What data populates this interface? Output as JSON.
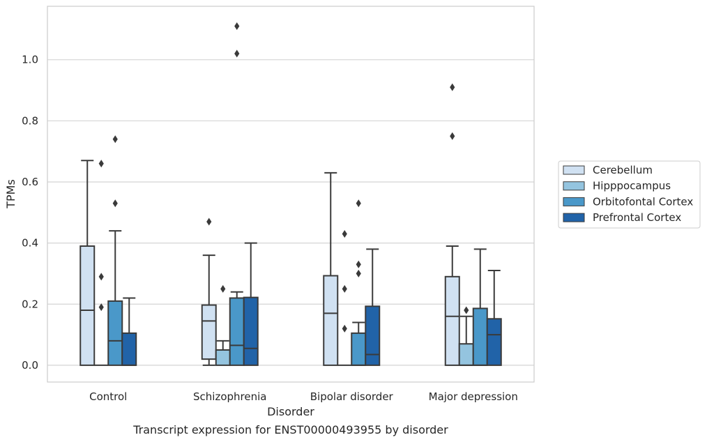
{
  "chart_data": {
    "type": "box",
    "xlabel": "Disorder",
    "ylabel": "TPMs",
    "caption": "Transcript expression for ENST00000493955 by disorder",
    "ylim": [
      -0.055,
      1.175
    ],
    "yticks": [
      "0.0",
      "0.2",
      "0.4",
      "0.6",
      "0.8",
      "1.0"
    ],
    "grid": true,
    "legend_position": "right",
    "categories": [
      "Control",
      "Schizophrenia",
      "Bipolar disorder",
      "Major depression"
    ],
    "series": [
      {
        "name": "Cerebellum",
        "color": "#d0e1f2",
        "boxes": [
          {
            "whislo": 0.0,
            "q1": 0.0,
            "med": 0.18,
            "q3": 0.39,
            "whishi": 0.67,
            "fliers": []
          },
          {
            "whislo": 0.0,
            "q1": 0.02,
            "med": 0.145,
            "q3": 0.197,
            "whishi": 0.36,
            "fliers": [
              0.47
            ]
          },
          {
            "whislo": 0.0,
            "q1": 0.0,
            "med": 0.17,
            "q3": 0.293,
            "whishi": 0.63,
            "fliers": []
          },
          {
            "whislo": 0.0,
            "q1": 0.0,
            "med": 0.16,
            "q3": 0.29,
            "whishi": 0.39,
            "fliers": [
              0.75,
              0.91
            ]
          }
        ]
      },
      {
        "name": "Hipppocampus",
        "color": "#94c4df",
        "boxes": [
          {
            "whislo": 0.0,
            "q1": 0.0,
            "med": 0.0,
            "q3": 0.0,
            "whishi": 0.0,
            "fliers": [
              0.19,
              0.29,
              0.66
            ]
          },
          {
            "whislo": 0.0,
            "q1": 0.0,
            "med": 0.05,
            "q3": 0.05,
            "whishi": 0.08,
            "fliers": [
              0.25
            ]
          },
          {
            "whislo": 0.0,
            "q1": 0.0,
            "med": 0.0,
            "q3": 0.0,
            "whishi": 0.0,
            "fliers": [
              0.12,
              0.25,
              0.43
            ]
          },
          {
            "whislo": 0.0,
            "q1": 0.0,
            "med": 0.0,
            "q3": 0.07,
            "whishi": 0.16,
            "fliers": [
              0.18
            ]
          }
        ]
      },
      {
        "name": "Orbitofontal Cortex",
        "color": "#4a98c9",
        "boxes": [
          {
            "whislo": 0.0,
            "q1": 0.0,
            "med": 0.08,
            "q3": 0.21,
            "whishi": 0.44,
            "fliers": [
              0.53,
              0.74
            ]
          },
          {
            "whislo": 0.0,
            "q1": 0.0,
            "med": 0.065,
            "q3": 0.22,
            "whishi": 0.24,
            "fliers": [
              1.02,
              1.11
            ]
          },
          {
            "whislo": 0.0,
            "q1": 0.0,
            "med": 0.0,
            "q3": 0.105,
            "whishi": 0.14,
            "fliers": [
              0.3,
              0.33,
              0.53
            ]
          },
          {
            "whislo": 0.0,
            "q1": 0.0,
            "med": 0.0,
            "q3": 0.186,
            "whishi": 0.38,
            "fliers": []
          }
        ]
      },
      {
        "name": "Prefrontal Cortex",
        "color": "#2163a8",
        "boxes": [
          {
            "whislo": 0.0,
            "q1": 0.0,
            "med": 0.0,
            "q3": 0.105,
            "whishi": 0.22,
            "fliers": []
          },
          {
            "whislo": 0.0,
            "q1": 0.0,
            "med": 0.055,
            "q3": 0.222,
            "whishi": 0.4,
            "fliers": []
          },
          {
            "whislo": 0.0,
            "q1": 0.0,
            "med": 0.035,
            "q3": 0.193,
            "whishi": 0.38,
            "fliers": []
          },
          {
            "whislo": 0.0,
            "q1": 0.0,
            "med": 0.1,
            "q3": 0.152,
            "whishi": 0.31,
            "fliers": []
          }
        ]
      }
    ]
  }
}
